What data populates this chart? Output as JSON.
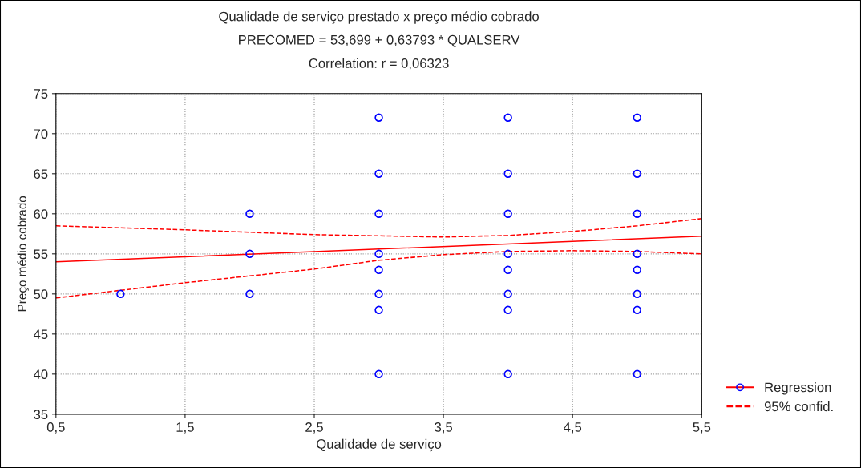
{
  "chart_data": {
    "type": "scatter",
    "title": "Qualidade de serviço prestado x preço médio cobrado",
    "subtitle": "PRECOMED = 53,699 + 0,63793 * QUALSERV",
    "annotations": [
      "Correlation: r = 0,06323"
    ],
    "xlabel": "Qualidade de serviço",
    "ylabel": "Preço médio cobrado",
    "series": [
      {
        "color": "#0000ff",
        "marker": "circle",
        "x": [
          1,
          2,
          2,
          2,
          3,
          3,
          3,
          3,
          3,
          3,
          3,
          3,
          4,
          4,
          4,
          4,
          4,
          4,
          4,
          4,
          5,
          5,
          5,
          5,
          5,
          5,
          5,
          5
        ],
        "values": [
          50,
          60,
          55,
          50,
          72,
          65,
          60,
          55,
          53,
          50,
          48,
          40,
          72,
          65,
          60,
          55,
          53,
          50,
          48,
          40,
          72,
          65,
          60,
          55,
          53,
          50,
          48,
          40
        ]
      },
      {
        "type": "line",
        "name": "Regression",
        "color": "#ff0000",
        "line_style": "solid",
        "x": [
          0.5,
          5.5
        ],
        "values": [
          54.0,
          57.2
        ]
      },
      {
        "type": "line",
        "name": "95% confid.",
        "color": "#ff0000",
        "line_style": "dashed",
        "x": [
          0.5,
          1.5,
          2.5,
          3.5,
          4.0,
          4.5,
          5.0,
          5.5
        ],
        "values": [
          58.5,
          58.0,
          57.4,
          57.1,
          57.3,
          57.8,
          58.5,
          59.4
        ]
      },
      {
        "type": "line",
        "color": "#ff0000",
        "line_style": "dashed",
        "x": [
          0.5,
          1.5,
          2.5,
          3.0,
          3.5,
          4.0,
          4.5,
          5.0,
          5.5
        ],
        "values": [
          49.5,
          51.4,
          53.1,
          54.2,
          54.9,
          55.3,
          55.4,
          55.3,
          55.0
        ]
      }
    ],
    "xlim": [
      0.5,
      5.5
    ],
    "xticks": [
      {
        "value": 0.5,
        "label": "0,5"
      },
      {
        "value": 1.5,
        "label": "1,5"
      },
      {
        "value": 2.5,
        "label": "2,5"
      },
      {
        "value": 3.5,
        "label": "3,5"
      },
      {
        "value": 4.5,
        "label": "4,5"
      },
      {
        "value": 5.5,
        "label": "5,5"
      }
    ],
    "ylim": [
      35,
      75
    ],
    "yticks": [
      35,
      40,
      45,
      50,
      55,
      60,
      65,
      70,
      75
    ],
    "grid": true,
    "legend": "bottom right"
  }
}
